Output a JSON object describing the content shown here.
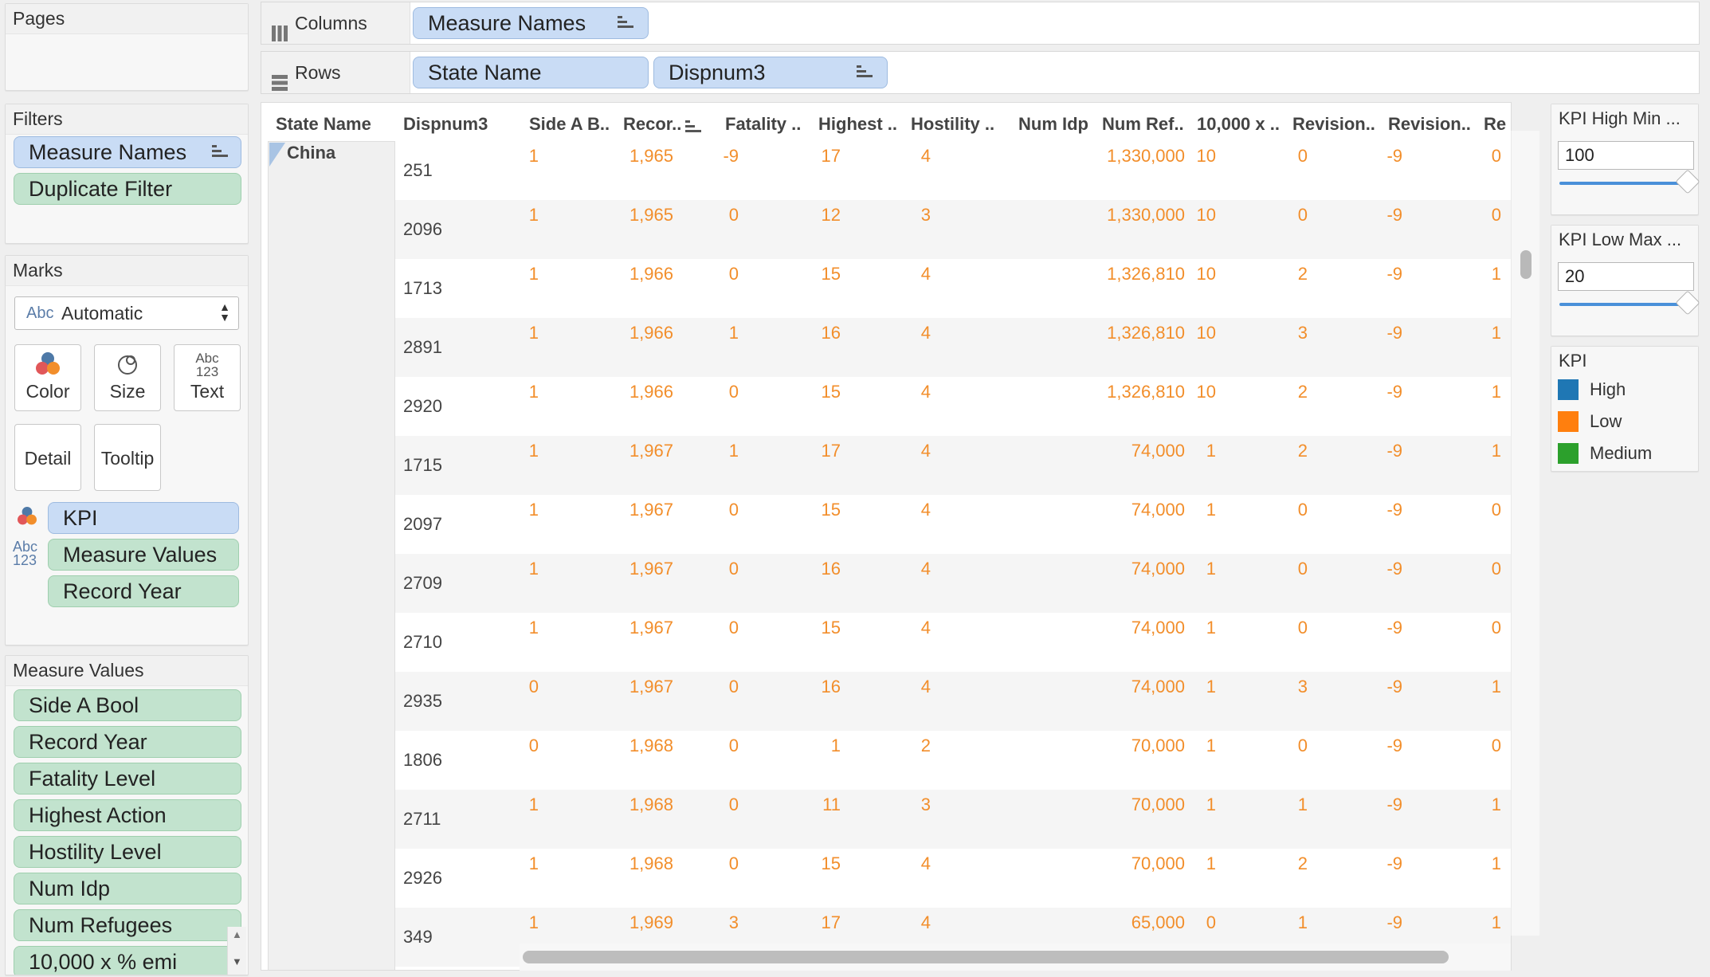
{
  "pages": {
    "title": "Pages"
  },
  "filters": {
    "title": "Filters",
    "items": [
      "Measure Names",
      "Duplicate Filter"
    ]
  },
  "marks": {
    "title": "Marks",
    "mark_type": "Automatic",
    "mark_type_icon": "Abc",
    "buttons": {
      "color": "Color",
      "size": "Size",
      "text": "Text",
      "detail": "Detail",
      "tooltip": "Tooltip"
    },
    "text_icon_top": "Abc",
    "text_icon_bottom": "123",
    "fields": [
      "KPI",
      "Measure Values",
      "Record Year"
    ],
    "field_icon_top": "Abc",
    "field_icon_bottom": "123"
  },
  "measure_values": {
    "title": "Measure Values",
    "items": [
      "Side A Bool",
      "Record Year",
      "Fatality Level",
      "Highest Action",
      "Hostility Level",
      "Num Idp",
      "Num Refugees",
      "10,000 x % emi"
    ]
  },
  "shelves": {
    "columns_label": "Columns",
    "columns_pill": "Measure Names",
    "rows_label": "Rows",
    "rows_pills": [
      "State Name",
      "Dispnum3"
    ]
  },
  "table": {
    "headers": [
      "State Name",
      "Dispnum3",
      "Side A B..",
      "Recor..",
      "Fatality ..",
      "Highest ..",
      "Hostility ..",
      "Num Idp",
      "Num Ref..",
      "10,000 x ..",
      "Revision..",
      "Revision..",
      "Re"
    ],
    "state": "China",
    "rows": [
      {
        "disp": "251",
        "cells": [
          "1",
          "1,965",
          "-9",
          "17",
          "4",
          "",
          "1,330,000",
          "10",
          "0",
          "-9",
          "0"
        ]
      },
      {
        "disp": "2096",
        "cells": [
          "1",
          "1,965",
          "0",
          "12",
          "3",
          "",
          "1,330,000",
          "10",
          "0",
          "-9",
          "0"
        ]
      },
      {
        "disp": "1713",
        "cells": [
          "1",
          "1,966",
          "0",
          "15",
          "4",
          "",
          "1,326,810",
          "10",
          "2",
          "-9",
          "1"
        ]
      },
      {
        "disp": "2891",
        "cells": [
          "1",
          "1,966",
          "1",
          "16",
          "4",
          "",
          "1,326,810",
          "10",
          "3",
          "-9",
          "1"
        ]
      },
      {
        "disp": "2920",
        "cells": [
          "1",
          "1,966",
          "0",
          "15",
          "4",
          "",
          "1,326,810",
          "10",
          "2",
          "-9",
          "1"
        ]
      },
      {
        "disp": "1715",
        "cells": [
          "1",
          "1,967",
          "1",
          "17",
          "4",
          "",
          "74,000",
          "1",
          "2",
          "-9",
          "1"
        ]
      },
      {
        "disp": "2097",
        "cells": [
          "1",
          "1,967",
          "0",
          "15",
          "4",
          "",
          "74,000",
          "1",
          "0",
          "-9",
          "0"
        ]
      },
      {
        "disp": "2709",
        "cells": [
          "1",
          "1,967",
          "0",
          "16",
          "4",
          "",
          "74,000",
          "1",
          "0",
          "-9",
          "0"
        ]
      },
      {
        "disp": "2710",
        "cells": [
          "1",
          "1,967",
          "0",
          "15",
          "4",
          "",
          "74,000",
          "1",
          "0",
          "-9",
          "0"
        ]
      },
      {
        "disp": "2935",
        "cells": [
          "0",
          "1,967",
          "0",
          "16",
          "4",
          "",
          "74,000",
          "1",
          "3",
          "-9",
          "1"
        ]
      },
      {
        "disp": "1806",
        "cells": [
          "0",
          "1,968",
          "0",
          "1",
          "2",
          "",
          "70,000",
          "1",
          "0",
          "-9",
          "0"
        ]
      },
      {
        "disp": "2711",
        "cells": [
          "1",
          "1,968",
          "0",
          "11",
          "3",
          "",
          "70,000",
          "1",
          "1",
          "-9",
          "1"
        ]
      },
      {
        "disp": "2926",
        "cells": [
          "1",
          "1,968",
          "0",
          "15",
          "4",
          "",
          "70,000",
          "1",
          "2",
          "-9",
          "1"
        ]
      },
      {
        "disp": "349",
        "cells": [
          "1",
          "1,969",
          "3",
          "17",
          "4",
          "",
          "65,000",
          "0",
          "1",
          "-9",
          "1"
        ]
      }
    ]
  },
  "params": {
    "high": {
      "title": "KPI High Min ...",
      "value": "100"
    },
    "low": {
      "title": "KPI Low Max ...",
      "value": "20"
    }
  },
  "legend": {
    "title": "KPI",
    "items": [
      {
        "label": "High",
        "color": "#1f77b4"
      },
      {
        "label": "Low",
        "color": "#ff7f0e"
      },
      {
        "label": "Medium",
        "color": "#2ca02c"
      }
    ]
  },
  "colors": {
    "value_text": "#f28e2b",
    "pill_blue": "#c9dcf5",
    "pill_green": "#c2e3ce"
  }
}
